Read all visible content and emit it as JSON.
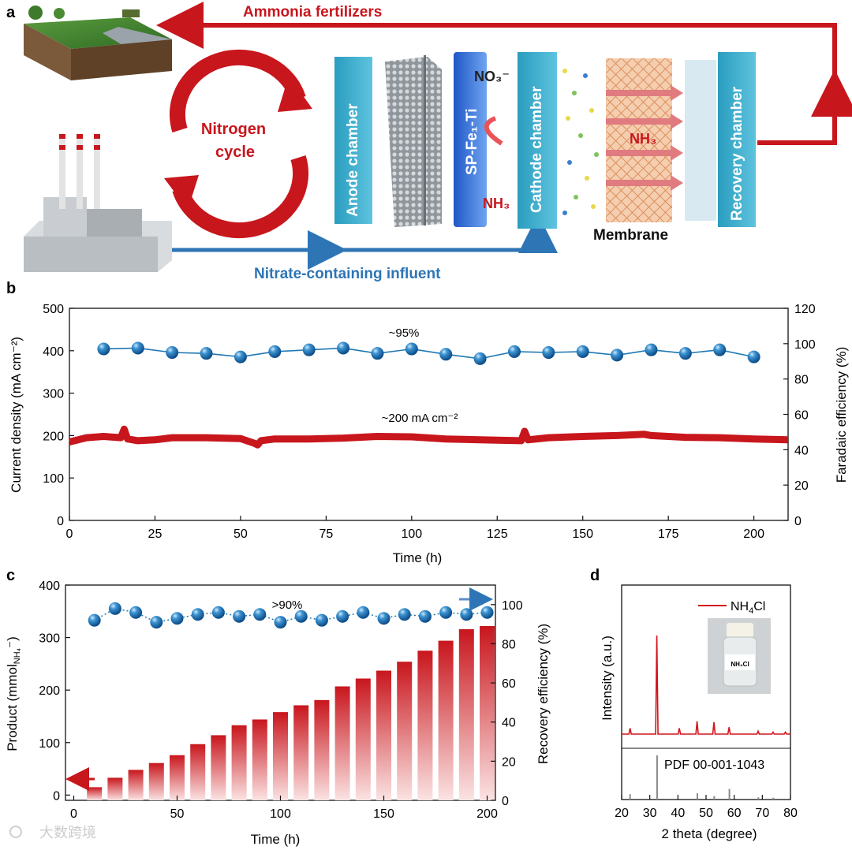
{
  "colors": {
    "red": "#c8161d",
    "blue": "#2e75b6",
    "sphere": "#1f78b4",
    "chamber": "#35a9c9",
    "axis": "#111111"
  },
  "panel_a": {
    "label": "a",
    "top_flow": "Ammonia fertilizers",
    "bottom_flow": "Nitrate-containing influent",
    "cycle_line1": "Nitrogen",
    "cycle_line2": "cycle",
    "anode": "Anode chamber",
    "electrode": "SP-Fe₁-Ti",
    "cathode": "Cathode chamber",
    "recovery": "Recovery chamber",
    "membrane": "Membrane",
    "no3": "NO₃⁻",
    "nh3_left": "NH₃",
    "nh3_right": "NH₃",
    "icons": [
      "farmland-icon",
      "factory-icon",
      "cycle-arrows-icon"
    ]
  },
  "chart_data": [
    {
      "panel": "b",
      "type": "line",
      "xlabel": "Time (h)",
      "ylabel_left": "Current density (mA cm⁻²)",
      "ylabel_right": "Faradaic efficiency (%)",
      "xlim": [
        0,
        210
      ],
      "ylim_left": [
        0,
        500
      ],
      "ylim_right": [
        0,
        120
      ],
      "x_ticks": [
        0,
        25,
        50,
        75,
        100,
        125,
        150,
        175,
        200
      ],
      "y_ticks_left": [
        0,
        100,
        200,
        300,
        400,
        500
      ],
      "y_ticks_right": [
        0,
        20,
        40,
        60,
        80,
        100,
        120
      ],
      "annotations": [
        "~95%",
        "~200 mA cm⁻²"
      ],
      "series": [
        {
          "name": "Faradaic efficiency",
          "axis": "right",
          "x": [
            10,
            20,
            30,
            40,
            50,
            60,
            70,
            80,
            90,
            100,
            110,
            120,
            130,
            140,
            150,
            160,
            170,
            180,
            190,
            200
          ],
          "values": [
            97,
            97.5,
            95,
            94.5,
            92.5,
            95.5,
            96.5,
            97.5,
            94.5,
            97,
            94,
            91.5,
            95.5,
            95,
            95.5,
            93.5,
            96.5,
            94.5,
            96.5,
            92.5
          ]
        },
        {
          "name": "Current density",
          "axis": "left",
          "x": [
            0,
            5,
            10,
            15,
            16,
            17,
            20,
            25,
            30,
            40,
            50,
            54,
            55,
            56,
            60,
            70,
            80,
            90,
            100,
            110,
            120,
            132,
            133,
            134,
            140,
            150,
            160,
            168,
            170,
            180,
            190,
            200,
            210
          ],
          "values": [
            185,
            195,
            198,
            195,
            215,
            192,
            188,
            190,
            195,
            195,
            193,
            182,
            178,
            188,
            192,
            192,
            194,
            198,
            197,
            192,
            190,
            188,
            210,
            190,
            195,
            198,
            200,
            203,
            200,
            196,
            195,
            192,
            190
          ]
        }
      ]
    },
    {
      "panel": "c",
      "type": "bar",
      "xlabel": "Time (h)",
      "ylabel_left": "Product (mmol",
      "ylabel_left_sub": "NH₄",
      "ylabel_left_end": "⁻)",
      "ylabel_right": "Recovery efficiency (%)",
      "xlim": [
        -4,
        204
      ],
      "ylim_left": [
        -10,
        400
      ],
      "ylim_right": [
        0,
        110
      ],
      "x_ticks": [
        0,
        50,
        100,
        150,
        200
      ],
      "y_ticks_left": [
        0,
        100,
        200,
        300,
        400
      ],
      "y_ticks_right": [
        0,
        20,
        40,
        60,
        80,
        100
      ],
      "annotations": [
        ">90%"
      ],
      "series": [
        {
          "name": "Product",
          "axis": "left",
          "x": [
            10,
            20,
            30,
            40,
            50,
            60,
            70,
            80,
            90,
            100,
            110,
            120,
            130,
            140,
            150,
            160,
            170,
            180,
            190,
            200
          ],
          "values": [
            15,
            33,
            48,
            61,
            76,
            97,
            114,
            133,
            144,
            158,
            171,
            181,
            207,
            222,
            237,
            254,
            275,
            294,
            316,
            322
          ]
        },
        {
          "name": "Recovery efficiency",
          "axis": "right",
          "x": [
            10,
            20,
            30,
            40,
            50,
            60,
            70,
            80,
            90,
            100,
            110,
            120,
            130,
            140,
            150,
            160,
            170,
            180,
            190,
            200
          ],
          "values": [
            92,
            98,
            96,
            91,
            93,
            95,
            96,
            94,
            95,
            91,
            94,
            92,
            94,
            96,
            93,
            95,
            94,
            96,
            95,
            96
          ]
        }
      ]
    },
    {
      "panel": "d",
      "type": "line",
      "xlabel": "2 theta (degree)",
      "ylabel": "Intensity (a.u.)",
      "xlim": [
        20,
        80
      ],
      "x_ticks": [
        20,
        30,
        40,
        50,
        60,
        70,
        80
      ],
      "legend_main": "NH",
      "legend_sub": "4",
      "legend_end": "Cl",
      "reference_label": "PDF 00-001-1043",
      "vial_label": "NH₄Cl",
      "peaks": [
        {
          "two_theta": 23,
          "intensity": 0.06
        },
        {
          "two_theta": 32.5,
          "intensity": 1.0
        },
        {
          "two_theta": 40.5,
          "intensity": 0.06
        },
        {
          "two_theta": 46.8,
          "intensity": 0.13
        },
        {
          "two_theta": 52.8,
          "intensity": 0.12
        },
        {
          "two_theta": 58.2,
          "intensity": 0.07
        },
        {
          "two_theta": 68.5,
          "intensity": 0.03
        },
        {
          "two_theta": 73.8,
          "intensity": 0.02
        },
        {
          "two_theta": 78.2,
          "intensity": 0.02
        }
      ],
      "reference_peaks": [
        {
          "two_theta": 23,
          "intensity": 0.12
        },
        {
          "two_theta": 32.6,
          "intensity": 1.0
        },
        {
          "two_theta": 46.9,
          "intensity": 0.14
        },
        {
          "two_theta": 52.9,
          "intensity": 0.08
        },
        {
          "two_theta": 58.3,
          "intensity": 0.24
        },
        {
          "two_theta": 68.6,
          "intensity": 0.05
        },
        {
          "two_theta": 73.9,
          "intensity": 0.04
        }
      ]
    }
  ],
  "watermark": "大数跨境"
}
